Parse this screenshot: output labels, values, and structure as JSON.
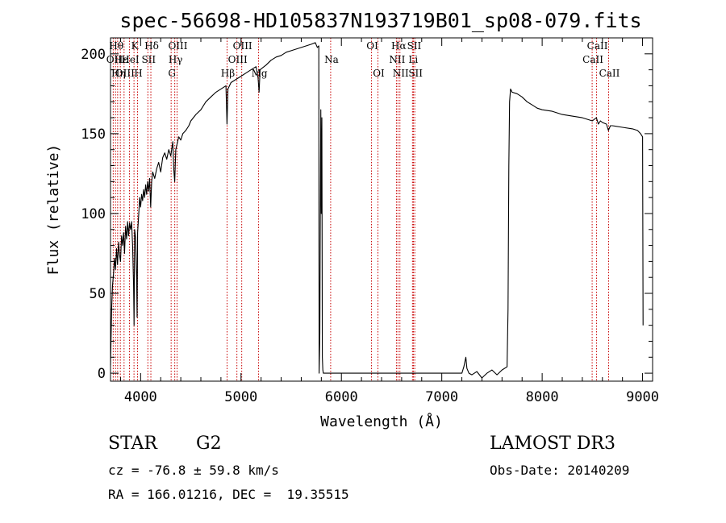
{
  "chart_data": {
    "type": "line",
    "title": "spec-56698-HD105837N193719B01_sp08-079.fits",
    "xlabel": "Wavelength (Å)",
    "ylabel": "Flux (relative)",
    "xlim": [
      3700,
      9100
    ],
    "ylim": [
      -5,
      210
    ],
    "xticks": [
      4000,
      5000,
      6000,
      7000,
      8000,
      9000
    ],
    "yticks": [
      0,
      50,
      100,
      150,
      200
    ],
    "grid": false,
    "series": [
      {
        "values": [
          [
            3700,
            5
          ],
          [
            3705,
            20
          ],
          [
            3712,
            42
          ],
          [
            3720,
            55
          ],
          [
            3730,
            62
          ],
          [
            3740,
            72
          ],
          [
            3750,
            65
          ],
          [
            3760,
            78
          ],
          [
            3770,
            68
          ],
          [
            3780,
            82
          ],
          [
            3790,
            74
          ],
          [
            3800,
            70
          ],
          [
            3810,
            86
          ],
          [
            3820,
            80
          ],
          [
            3830,
            88
          ],
          [
            3840,
            75
          ],
          [
            3850,
            92
          ],
          [
            3860,
            84
          ],
          [
            3870,
            95
          ],
          [
            3880,
            86
          ],
          [
            3890,
            94
          ],
          [
            3900,
            90
          ],
          [
            3910,
            95
          ],
          [
            3920,
            80
          ],
          [
            3930,
            55
          ],
          [
            3935,
            30
          ],
          [
            3940,
            90
          ],
          [
            3950,
            85
          ],
          [
            3960,
            60
          ],
          [
            3965,
            35
          ],
          [
            3970,
            88
          ],
          [
            3980,
            98
          ],
          [
            3990,
            110
          ],
          [
            4000,
            104
          ],
          [
            4010,
            112
          ],
          [
            4020,
            108
          ],
          [
            4030,
            115
          ],
          [
            4040,
            110
          ],
          [
            4050,
            118
          ],
          [
            4060,
            112
          ],
          [
            4070,
            120
          ],
          [
            4080,
            114
          ],
          [
            4090,
            122
          ],
          [
            4100,
            104
          ],
          [
            4110,
            120
          ],
          [
            4120,
            126
          ],
          [
            4140,
            122
          ],
          [
            4160,
            128
          ],
          [
            4180,
            132
          ],
          [
            4200,
            126
          ],
          [
            4220,
            135
          ],
          [
            4240,
            138
          ],
          [
            4260,
            134
          ],
          [
            4280,
            140
          ],
          [
            4300,
            136
          ],
          [
            4320,
            145
          ],
          [
            4330,
            128
          ],
          [
            4340,
            120
          ],
          [
            4350,
            140
          ],
          [
            4380,
            148
          ],
          [
            4400,
            146
          ],
          [
            4420,
            150
          ],
          [
            4450,
            152
          ],
          [
            4480,
            155
          ],
          [
            4500,
            158
          ],
          [
            4550,
            162
          ],
          [
            4600,
            165
          ],
          [
            4650,
            170
          ],
          [
            4700,
            173
          ],
          [
            4750,
            176
          ],
          [
            4800,
            178
          ],
          [
            4850,
            180
          ],
          [
            4860,
            156
          ],
          [
            4870,
            178
          ],
          [
            4900,
            182
          ],
          [
            4950,
            184
          ],
          [
            5000,
            186
          ],
          [
            5050,
            188
          ],
          [
            5100,
            190
          ],
          [
            5150,
            192
          ],
          [
            5170,
            185
          ],
          [
            5180,
            176
          ],
          [
            5190,
            190
          ],
          [
            5250,
            193
          ],
          [
            5300,
            196
          ],
          [
            5350,
            198
          ],
          [
            5400,
            199
          ],
          [
            5450,
            201
          ],
          [
            5500,
            202
          ],
          [
            5550,
            203
          ],
          [
            5600,
            204
          ],
          [
            5650,
            205
          ],
          [
            5700,
            206
          ],
          [
            5740,
            207
          ],
          [
            5760,
            204
          ],
          [
            5775,
            205
          ],
          [
            5778,
            0
          ],
          [
            5785,
            25
          ],
          [
            5790,
            100
          ],
          [
            5795,
            165
          ],
          [
            5800,
            100
          ],
          [
            5805,
            160
          ],
          [
            5810,
            10
          ],
          [
            5815,
            2
          ],
          [
            5820,
            0
          ],
          [
            6000,
            0
          ],
          [
            6500,
            0
          ],
          [
            7000,
            0
          ],
          [
            7200,
            0
          ],
          [
            7220,
            4
          ],
          [
            7240,
            10
          ],
          [
            7250,
            3
          ],
          [
            7270,
            0
          ],
          [
            7300,
            -1
          ],
          [
            7350,
            1
          ],
          [
            7400,
            -3
          ],
          [
            7450,
            0
          ],
          [
            7500,
            2
          ],
          [
            7550,
            -1
          ],
          [
            7600,
            2
          ],
          [
            7650,
            4
          ],
          [
            7660,
            40
          ],
          [
            7668,
            130
          ],
          [
            7675,
            170
          ],
          [
            7685,
            178
          ],
          [
            7700,
            176
          ],
          [
            7750,
            175
          ],
          [
            7800,
            173
          ],
          [
            7850,
            170
          ],
          [
            7900,
            168
          ],
          [
            7950,
            166
          ],
          [
            8000,
            165
          ],
          [
            8100,
            164
          ],
          [
            8200,
            162
          ],
          [
            8300,
            161
          ],
          [
            8400,
            160
          ],
          [
            8500,
            158
          ],
          [
            8540,
            160
          ],
          [
            8560,
            156
          ],
          [
            8580,
            158
          ],
          [
            8600,
            157
          ],
          [
            8640,
            156
          ],
          [
            8660,
            152
          ],
          [
            8680,
            155
          ],
          [
            8700,
            155
          ],
          [
            8800,
            154
          ],
          [
            8900,
            153
          ],
          [
            8950,
            152
          ],
          [
            8980,
            150
          ],
          [
            9000,
            148
          ],
          [
            9005,
            30
          ]
        ]
      }
    ],
    "lines": [
      {
        "w": 3727,
        "label": "OII",
        "row": 1
      },
      {
        "w": 3750,
        "label": "Hθ",
        "row": 0
      },
      {
        "w": 3771,
        "label": "Hη",
        "row": 2
      },
      {
        "w": 3798,
        "label": "Hε",
        "row": 1
      },
      {
        "w": 3835,
        "label": "OIII",
        "row": 2
      },
      {
        "w": 3889,
        "label": "HeI",
        "row": 1
      },
      {
        "w": 3934,
        "label": "K",
        "row": 0
      },
      {
        "w": 3969,
        "label": "H",
        "row": 2
      },
      {
        "w": 4072,
        "label": "SII",
        "row": 1
      },
      {
        "w": 4102,
        "label": "Hδ",
        "row": 0
      },
      {
        "w": 4304,
        "label": "G",
        "row": 2
      },
      {
        "w": 4340,
        "label": "Hγ",
        "row": 1
      },
      {
        "w": 4363,
        "label": "OIII",
        "row": 0
      },
      {
        "w": 4861,
        "label": "Hβ",
        "row": 2
      },
      {
        "w": 4959,
        "label": "OIII",
        "row": 1
      },
      {
        "w": 5007,
        "label": "OIII",
        "row": 0
      },
      {
        "w": 5175,
        "label": "Mg",
        "row": 2
      },
      {
        "w": 5893,
        "label": "Na",
        "row": 1
      },
      {
        "w": 6300,
        "label": "OI",
        "row": 0
      },
      {
        "w": 6364,
        "label": "OI",
        "row": 2
      },
      {
        "w": 6548,
        "label": "NII",
        "row": 1
      },
      {
        "w": 6563,
        "label": "Hα",
        "row": 0
      },
      {
        "w": 6583,
        "label": "NII",
        "row": 2
      },
      {
        "w": 6708,
        "label": "Li",
        "row": 1
      },
      {
        "w": 6717,
        "label": "SII",
        "row": 0
      },
      {
        "w": 6731,
        "label": "SII",
        "row": 2
      },
      {
        "w": 8498,
        "label": "CaII",
        "row": 1
      },
      {
        "w": 8542,
        "label": "CaII",
        "row": 0
      },
      {
        "w": 8662,
        "label": "CaII",
        "row": 2
      }
    ]
  },
  "info": {
    "class": "STAR",
    "subclass": "G2",
    "survey": "LAMOST DR3",
    "redshift": "cz = -76.8 ± 59.8 km/s",
    "obsdate": "Obs-Date: 20140209",
    "coords": "RA = 166.01216, DEC =  19.35515"
  },
  "colors": {
    "spectrum": "#000000",
    "line_marker": "#c80000",
    "axes": "#000000"
  }
}
